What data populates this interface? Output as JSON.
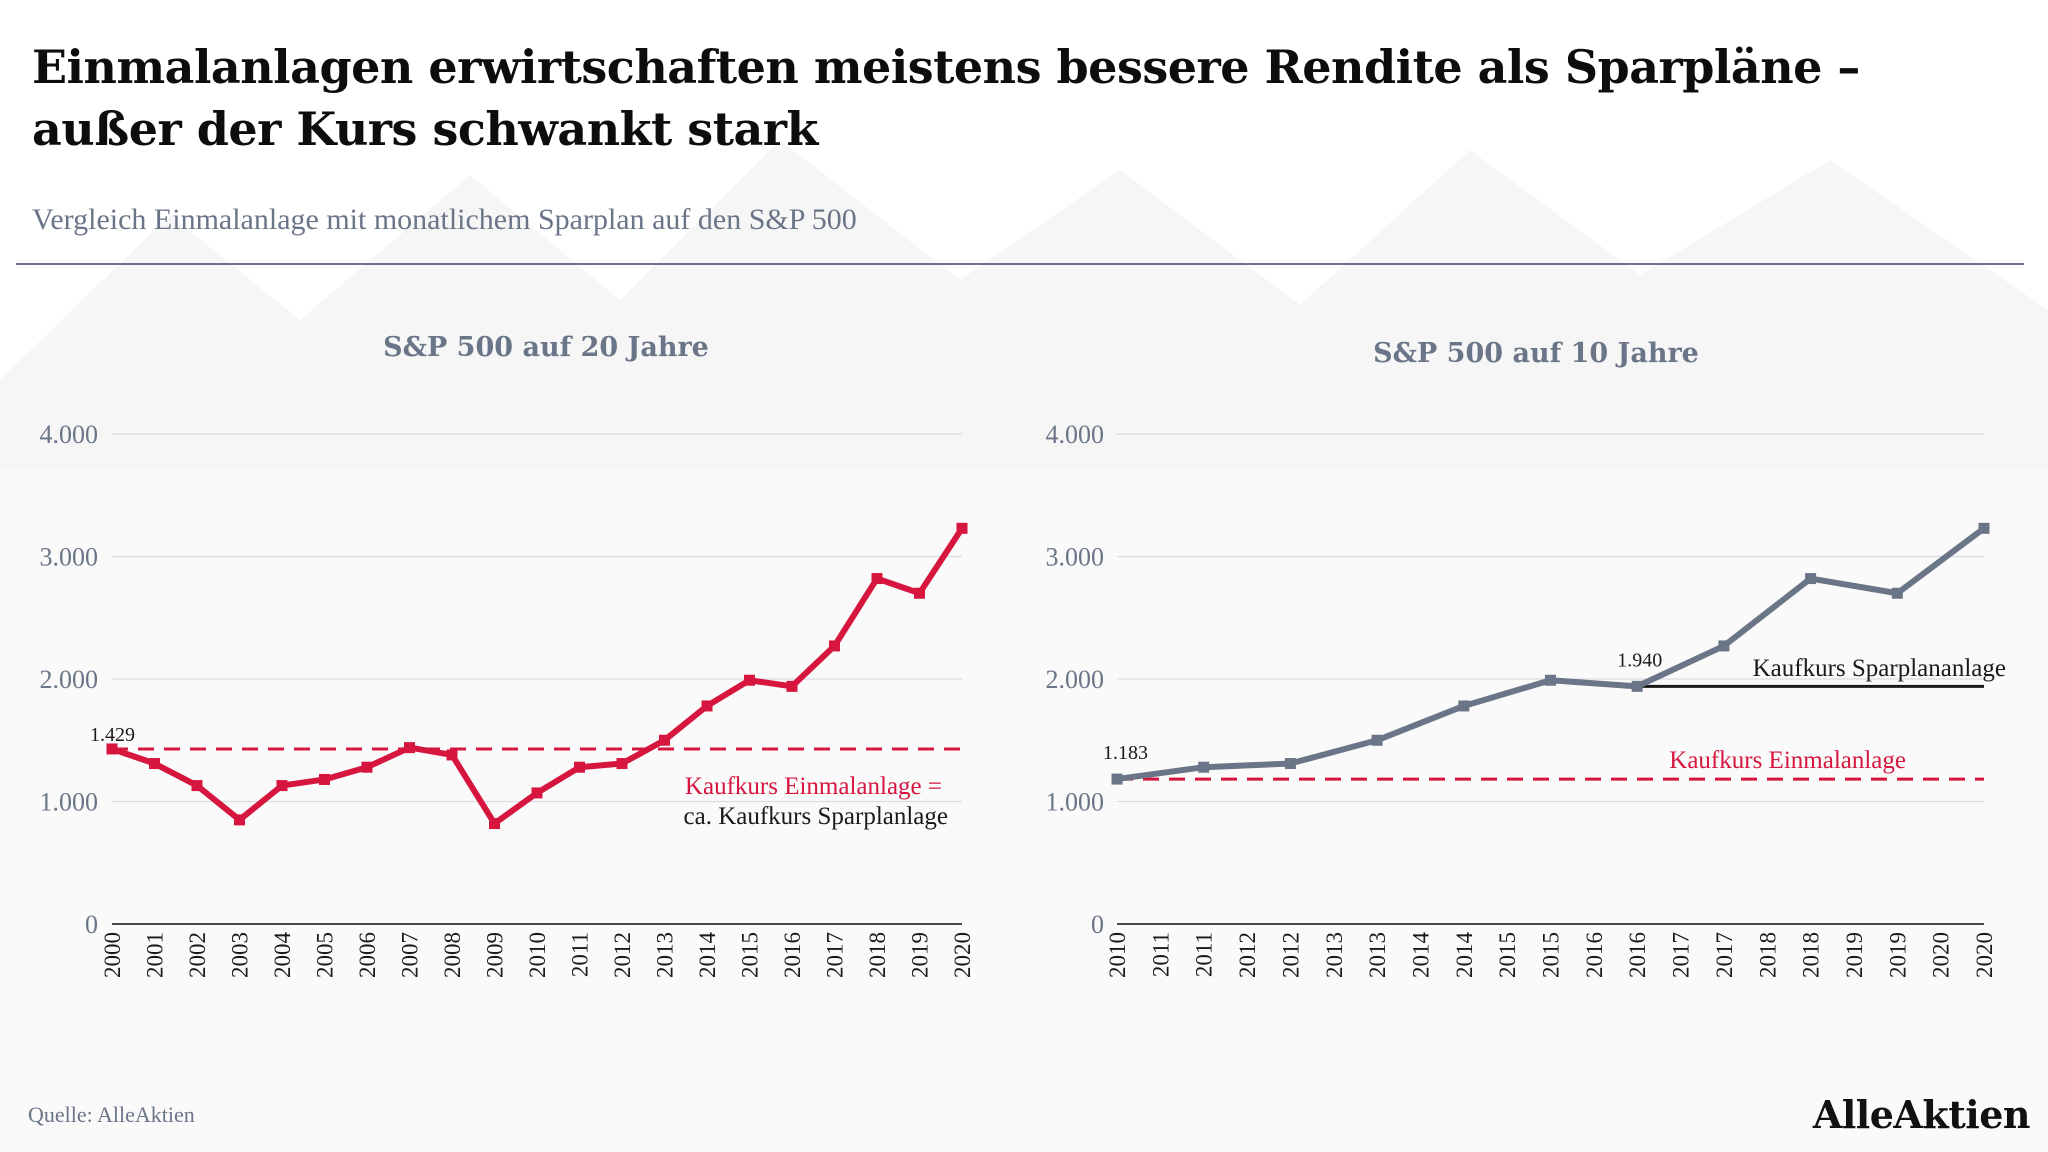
{
  "header": {
    "title": "Einmalanlagen erwirtschaften meistens bessere Rendite als Sparpläne – außer der Kurs schwankt stark",
    "subtitle": "Vergleich Einmalanlage mit monatlichem Sparplan auf den S&P 500"
  },
  "footer": {
    "source": "Quelle: AlleAktien",
    "logo": "AlleAktien"
  },
  "colors": {
    "red": "#d6163f",
    "slate": "#6b7588",
    "dark": "#1a1a1a",
    "grid": "#d9dce2"
  },
  "chart_data": [
    {
      "type": "line",
      "title": "S&P 500 auf 20 Jahre",
      "xlabel": "",
      "ylabel": "",
      "ylim": [
        0,
        4000
      ],
      "yticks": [
        "0",
        "1.000",
        "2.000",
        "3.000",
        "4.000"
      ],
      "x": [
        "2000",
        "2001",
        "2002",
        "2003",
        "2004",
        "2005",
        "2006",
        "2007",
        "2008",
        "2009",
        "2010",
        "2011",
        "2012",
        "2013",
        "2014",
        "2015",
        "2016",
        "2017",
        "2018",
        "2019",
        "2020"
      ],
      "series": [
        {
          "color": "#d6163f",
          "marker": "square",
          "values": [
            1429,
            1310,
            1130,
            850,
            1130,
            1180,
            1280,
            1440,
            1380,
            820,
            1070,
            1280,
            1310,
            1500,
            1780,
            1990,
            1940,
            2270,
            2820,
            2700,
            3230
          ]
        }
      ],
      "point_labels": [
        {
          "x": "2000",
          "value": 1429,
          "text": "1.429"
        }
      ],
      "reference_lines": [
        {
          "value": 1429,
          "style": "dashed",
          "color": "#d6163f",
          "from": "2000",
          "to": "2020"
        }
      ],
      "annotations": [
        {
          "text": "Kaufkurs Einmalanlage =",
          "color": "#d6163f"
        },
        {
          "text": "ca. Kaufkurs Sparplanlage",
          "color": "#1a1a1a"
        }
      ],
      "grid": true
    },
    {
      "type": "line",
      "title": "S&P 500 auf 10 Jahre",
      "xlabel": "",
      "ylabel": "",
      "ylim": [
        0,
        4000
      ],
      "yticks": [
        "0",
        "1.000",
        "2.000",
        "3.000",
        "4.000"
      ],
      "x": [
        "2010",
        "2011",
        "2012",
        "2013",
        "2014",
        "2015",
        "2016",
        "2017",
        "2018",
        "2019",
        "2020"
      ],
      "xticks": [
        "2010",
        "2011",
        "2011",
        "2012",
        "2012",
        "2013",
        "2013",
        "2014",
        "2014",
        "2015",
        "2015",
        "2016",
        "2016",
        "2017",
        "2017",
        "2018",
        "2018",
        "2019",
        "2019",
        "2020",
        "2020"
      ],
      "series": [
        {
          "color": "#6b7588",
          "marker": "square",
          "values": [
            1183,
            1280,
            1310,
            1500,
            1780,
            1990,
            1940,
            2270,
            2820,
            2700,
            3230
          ]
        }
      ],
      "point_labels": [
        {
          "x": "2010",
          "value": 1183,
          "text": "1.183"
        },
        {
          "x": "2016",
          "value": 1940,
          "text": "1.940"
        }
      ],
      "reference_lines": [
        {
          "value": 1183,
          "style": "dashed",
          "color": "#d6163f",
          "from": "2010",
          "to": "2020"
        },
        {
          "value": 1940,
          "style": "solid",
          "color": "#1a1a1a",
          "from": "2016",
          "to": "2020"
        }
      ],
      "annotations": [
        {
          "text": "Kaufkurs Sparplananlage",
          "color": "#1a1a1a"
        },
        {
          "text": "Kaufkurs Einmalanlage",
          "color": "#d6163f"
        }
      ],
      "grid": true
    }
  ]
}
